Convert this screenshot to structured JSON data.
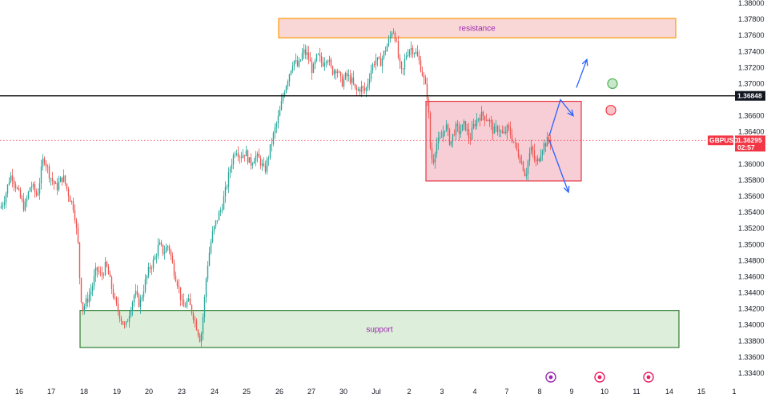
{
  "chart_data": {
    "type": "candlestick",
    "symbol": "GBPUSD",
    "current_price": "1.36295",
    "countdown": "02:57",
    "price_line": "1.36848",
    "colors": {
      "up": "#26a69a",
      "down": "#ef5350",
      "price_line": "#000000",
      "symbol_tag": "#f23645"
    },
    "y_axis": {
      "range": [
        1.3335,
        1.38
      ],
      "ticks": [
        "1.38000",
        "1.37800",
        "1.37600",
        "1.37400",
        "1.37200",
        "1.37000",
        "1.36600",
        "1.36400",
        "1.36000",
        "1.35800",
        "1.35600",
        "1.35400",
        "1.35200",
        "1.35000",
        "1.34800",
        "1.34600",
        "1.34400",
        "1.34200",
        "1.34000",
        "1.33800",
        "1.33600",
        "1.33400"
      ]
    },
    "x_axis": {
      "labels": [
        "16",
        "17",
        "18",
        "19",
        "20",
        "23",
        "24",
        "25",
        "26",
        "27",
        "30",
        "Jul",
        "2",
        "3",
        "4",
        "7",
        "8",
        "9",
        "10",
        "11",
        "14",
        "15",
        "1"
      ]
    },
    "price_path": [
      [
        0,
        1.3545
      ],
      [
        6,
        1.356
      ],
      [
        12,
        1.3585
      ],
      [
        15,
        1.3585
      ],
      [
        22,
        1.3565
      ],
      [
        30,
        1.3545
      ],
      [
        38,
        1.3575
      ],
      [
        46,
        1.356
      ],
      [
        54,
        1.361
      ],
      [
        62,
        1.3585
      ],
      [
        70,
        1.357
      ],
      [
        78,
        1.3585
      ],
      [
        86,
        1.356
      ],
      [
        92,
        1.3545
      ],
      [
        97,
        1.35
      ],
      [
        100,
        1.344
      ],
      [
        103,
        1.342
      ],
      [
        108,
        1.343
      ],
      [
        114,
        1.3445
      ],
      [
        120,
        1.347
      ],
      [
        126,
        1.346
      ],
      [
        132,
        1.3475
      ],
      [
        138,
        1.345
      ],
      [
        144,
        1.3425
      ],
      [
        150,
        1.341
      ],
      [
        156,
        1.3395
      ],
      [
        162,
        1.342
      ],
      [
        168,
        1.344
      ],
      [
        174,
        1.3425
      ],
      [
        180,
        1.345
      ],
      [
        186,
        1.347
      ],
      [
        192,
        1.348
      ],
      [
        198,
        1.35
      ],
      [
        204,
        1.349
      ],
      [
        210,
        1.35
      ],
      [
        216,
        1.347
      ],
      [
        222,
        1.345
      ],
      [
        228,
        1.342
      ],
      [
        234,
        1.343
      ],
      [
        240,
        1.3415
      ],
      [
        246,
        1.3395
      ],
      [
        250,
        1.338
      ],
      [
        254,
        1.342
      ],
      [
        258,
        1.347
      ],
      [
        264,
        1.351
      ],
      [
        270,
        1.353
      ],
      [
        276,
        1.3545
      ],
      [
        282,
        1.357
      ],
      [
        288,
        1.36
      ],
      [
        294,
        1.362
      ],
      [
        300,
        1.361
      ],
      [
        306,
        1.3615
      ],
      [
        312,
        1.36
      ],
      [
        318,
        1.361
      ],
      [
        324,
        1.3605
      ],
      [
        330,
        1.359
      ],
      [
        336,
        1.3615
      ],
      [
        342,
        1.364
      ],
      [
        348,
        1.366
      ],
      [
        354,
        1.369
      ],
      [
        360,
        1.371
      ],
      [
        366,
        1.373
      ],
      [
        372,
        1.372
      ],
      [
        378,
        1.374
      ],
      [
        384,
        1.3735
      ],
      [
        390,
        1.3715
      ],
      [
        396,
        1.3735
      ],
      [
        402,
        1.3725
      ],
      [
        408,
        1.3735
      ],
      [
        414,
        1.3715
      ],
      [
        420,
        1.372
      ],
      [
        426,
        1.37
      ],
      [
        432,
        1.371
      ],
      [
        438,
        1.3705
      ],
      [
        444,
        1.369
      ],
      [
        450,
        1.3695
      ],
      [
        456,
        1.369
      ],
      [
        462,
        1.3715
      ],
      [
        468,
        1.373
      ],
      [
        474,
        1.3725
      ],
      [
        480,
        1.374
      ],
      [
        486,
        1.3755
      ],
      [
        490,
        1.377
      ],
      [
        494,
        1.3755
      ],
      [
        498,
        1.3725
      ],
      [
        502,
        1.371
      ],
      [
        506,
        1.3735
      ],
      [
        512,
        1.3745
      ],
      [
        518,
        1.374
      ],
      [
        524,
        1.3725
      ],
      [
        530,
        1.37
      ],
      [
        534,
        1.368
      ],
      [
        537,
        1.362
      ],
      [
        540,
        1.36
      ],
      [
        544,
        1.3625
      ],
      [
        550,
        1.363
      ],
      [
        556,
        1.365
      ],
      [
        562,
        1.3625
      ],
      [
        568,
        1.3645
      ],
      [
        574,
        1.364
      ],
      [
        580,
        1.365
      ],
      [
        586,
        1.363
      ],
      [
        592,
        1.365
      ],
      [
        598,
        1.366
      ],
      [
        604,
        1.366
      ],
      [
        610,
        1.3655
      ],
      [
        616,
        1.364
      ],
      [
        622,
        1.3645
      ],
      [
        628,
        1.3635
      ],
      [
        634,
        1.3645
      ],
      [
        640,
        1.363
      ],
      [
        646,
        1.3615
      ],
      [
        652,
        1.36
      ],
      [
        656,
        1.3585
      ],
      [
        660,
        1.361
      ],
      [
        664,
        1.362
      ],
      [
        668,
        1.36
      ],
      [
        672,
        1.3605
      ],
      [
        676,
        1.362
      ],
      [
        680,
        1.3625
      ],
      [
        684,
        1.363
      ],
      [
        688,
        1.363
      ]
    ],
    "zones": [
      {
        "label": "resistance",
        "from": 1.3757,
        "to": 1.3781,
        "x_start": 348,
        "x_end": 844,
        "fill": "#f8d0d0",
        "stroke": "#ff9800"
      },
      {
        "label": "",
        "from": 1.3579,
        "to": 1.3678,
        "x_start": 532,
        "x_end": 726,
        "fill": "#f7c6cf",
        "stroke": "#e53945"
      },
      {
        "label": "support",
        "from": 1.3372,
        "to": 1.3418,
        "x_start": 100,
        "x_end": 848,
        "fill": "#d7ecd3",
        "stroke": "#2e7d32"
      }
    ],
    "annotations": [
      {
        "type": "arrow",
        "color": "#2962ff",
        "points": [
          [
            686,
            1.3635
          ],
          [
            700,
            1.368
          ],
          [
            716,
            1.366
          ]
        ]
      },
      {
        "type": "arrow",
        "color": "#2962ff",
        "points": [
          [
            686,
            1.363
          ],
          [
            710,
            1.3565
          ]
        ]
      },
      {
        "type": "arrow",
        "color": "#2962ff",
        "points": [
          [
            720,
            1.3695
          ],
          [
            733,
            1.373
          ]
        ]
      },
      {
        "type": "circle",
        "color": "#4caf50",
        "x": 765,
        "y": 1.37
      },
      {
        "type": "circle",
        "color": "#f23645",
        "x": 763,
        "y": 1.3667
      }
    ]
  }
}
